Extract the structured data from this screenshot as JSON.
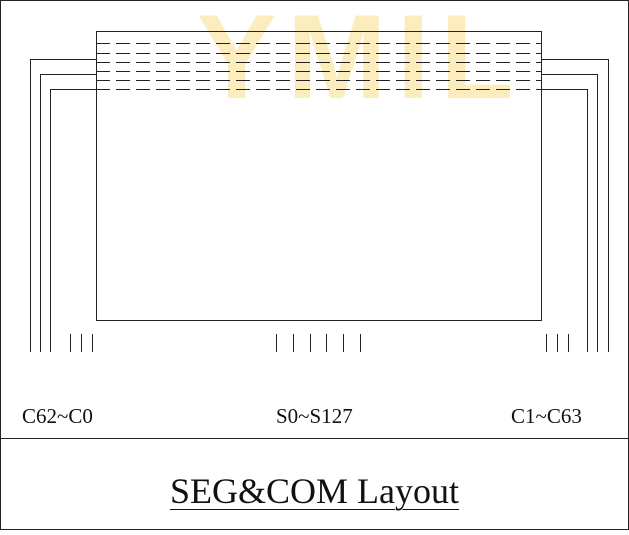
{
  "watermark": {
    "text": "YMIL",
    "color": "#fbe6a3"
  },
  "labels": {
    "left_com": "C62~C0",
    "seg": "S0~S127",
    "right_com": "C1~C63"
  },
  "title": "SEG&COM Layout",
  "colors": {
    "line": "#222222",
    "background": "#ffffff"
  }
}
